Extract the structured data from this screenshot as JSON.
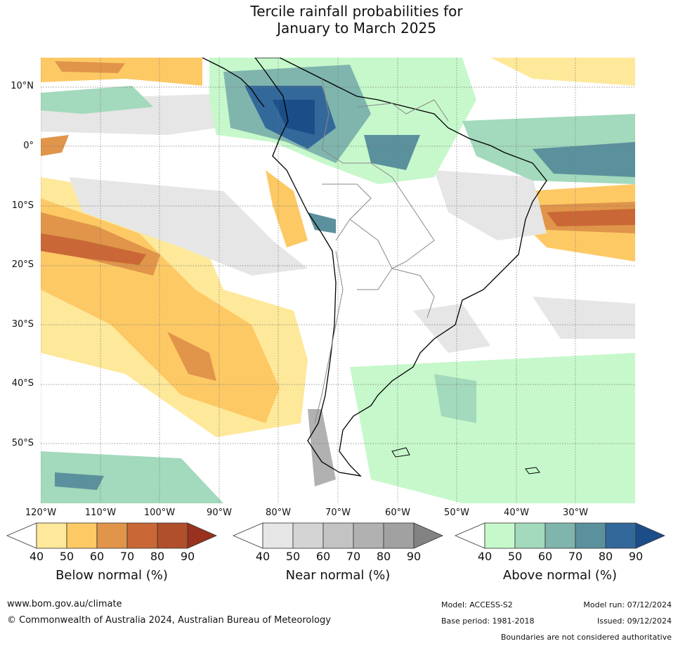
{
  "title": {
    "line1": "Tercile rainfall probabilities for",
    "line2": "January to March 2025"
  },
  "map": {
    "lat_labels": [
      "10°N",
      "0°",
      "10°S",
      "20°S",
      "30°S",
      "40°S",
      "50°S"
    ],
    "lon_labels": [
      "120°W",
      "110°W",
      "100°W",
      "90°W",
      "80°W",
      "70°W",
      "60°W",
      "50°W",
      "40°W",
      "30°W"
    ],
    "lat_range": [
      -60,
      15
    ],
    "lon_range": [
      -120,
      -20
    ]
  },
  "legends": [
    {
      "title": "Below normal (%)",
      "ticks": [
        "40",
        "50",
        "60",
        "70",
        "80",
        "90"
      ],
      "colors": [
        "#ffffff",
        "#fee89a",
        "#fdc965",
        "#e0954a",
        "#c96836",
        "#b04f2b",
        "#98321f"
      ]
    },
    {
      "title": "Near normal (%)",
      "ticks": [
        "40",
        "50",
        "60",
        "70",
        "80",
        "90"
      ],
      "colors": [
        "#ffffff",
        "#e6e6e6",
        "#d4d4d4",
        "#c3c3c3",
        "#b1b1b1",
        "#a1a1a1",
        "#828282"
      ]
    },
    {
      "title": "Above normal (%)",
      "ticks": [
        "40",
        "50",
        "60",
        "70",
        "80",
        "90"
      ],
      "colors": [
        "#ffffff",
        "#c6f8cb",
        "#a3d9bc",
        "#7fb5ad",
        "#5b919d",
        "#33689a",
        "#1b4e89"
      ]
    }
  ],
  "footer": {
    "website": "www.bom.gov.au/climate",
    "copyright": "© Commonwealth of Australia 2024, Australian Bureau of Meteorology",
    "model": "Model: ACCESS-S2",
    "base_period": "Base period: 1981-2018",
    "model_run": "Model run: 07/12/2024",
    "issued": "Issued: 09/12/2024",
    "disclaimer": "Boundaries are not considered authoritative"
  }
}
